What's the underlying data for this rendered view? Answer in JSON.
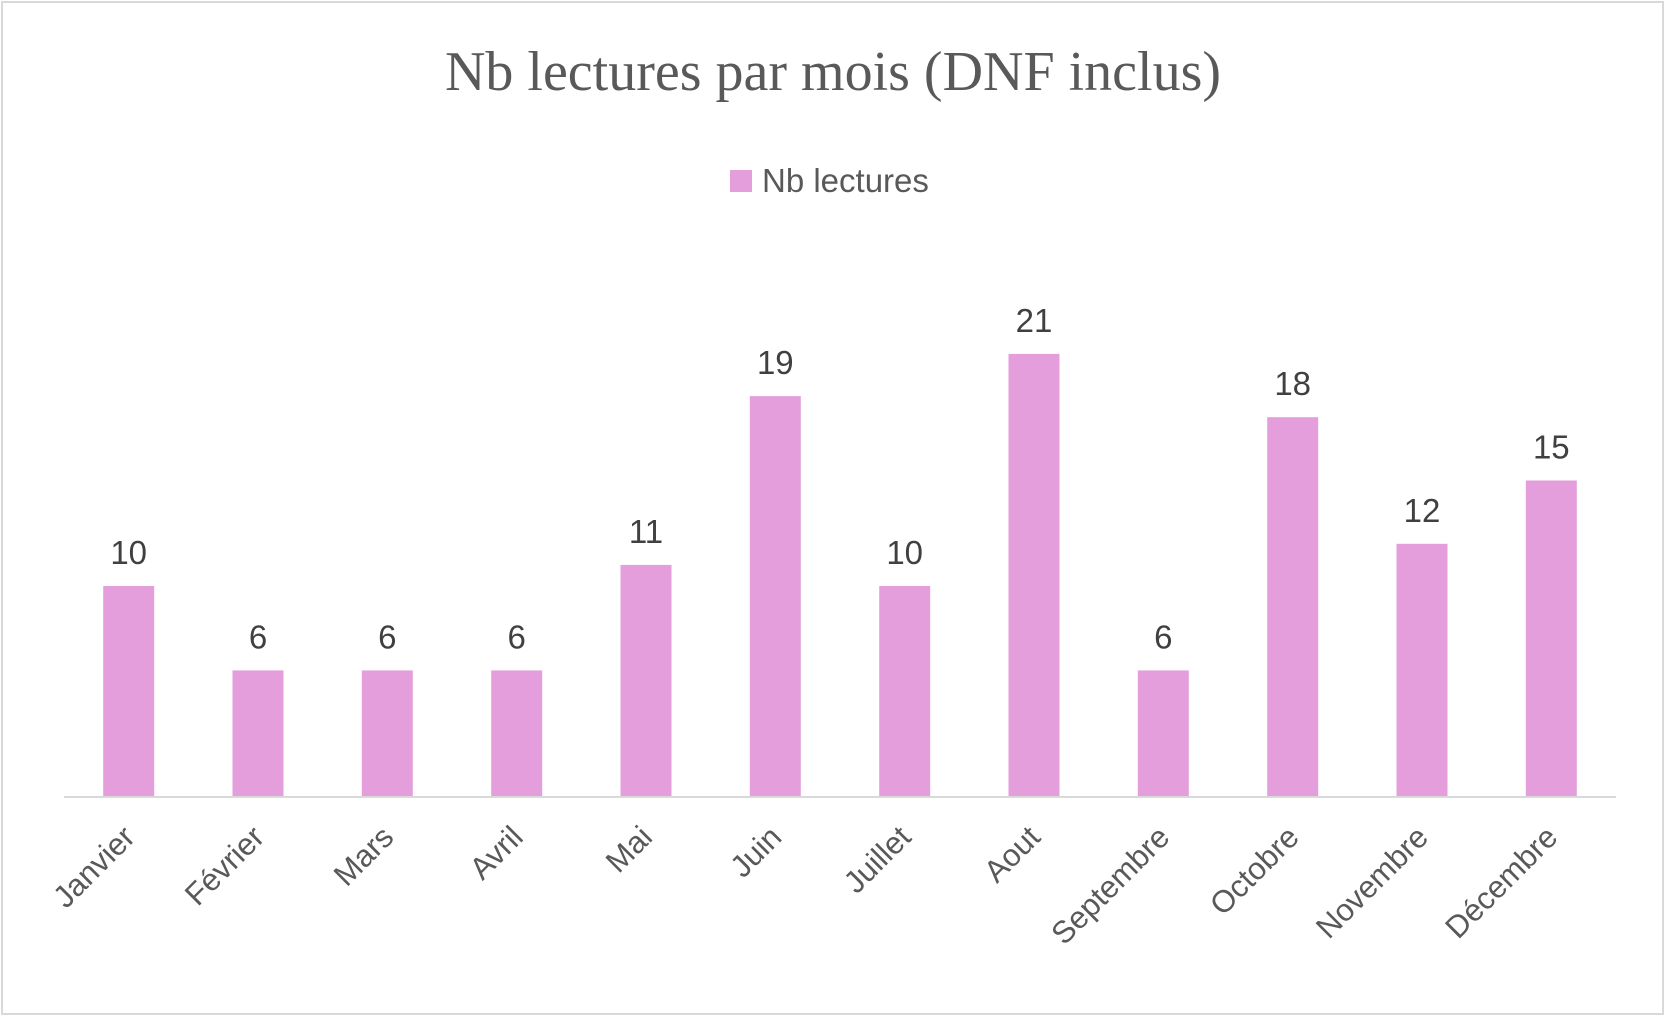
{
  "chart_data": {
    "type": "bar",
    "title": "Nb lectures par mois (DNF inclus)",
    "categories": [
      "Janvier",
      "Février",
      "Mars",
      "Avril",
      "Mai",
      "Juin",
      "Juillet",
      "Aout",
      "Septembre",
      "Octobre",
      "Novembre",
      "Décembre"
    ],
    "series": [
      {
        "name": "Nb lectures",
        "values": [
          10,
          6,
          6,
          6,
          11,
          19,
          10,
          21,
          6,
          18,
          12,
          15
        ],
        "color": "#e59edc"
      }
    ],
    "data_labels": true,
    "legend_position": "top",
    "grid": false,
    "ylim": [
      0,
      21
    ]
  }
}
